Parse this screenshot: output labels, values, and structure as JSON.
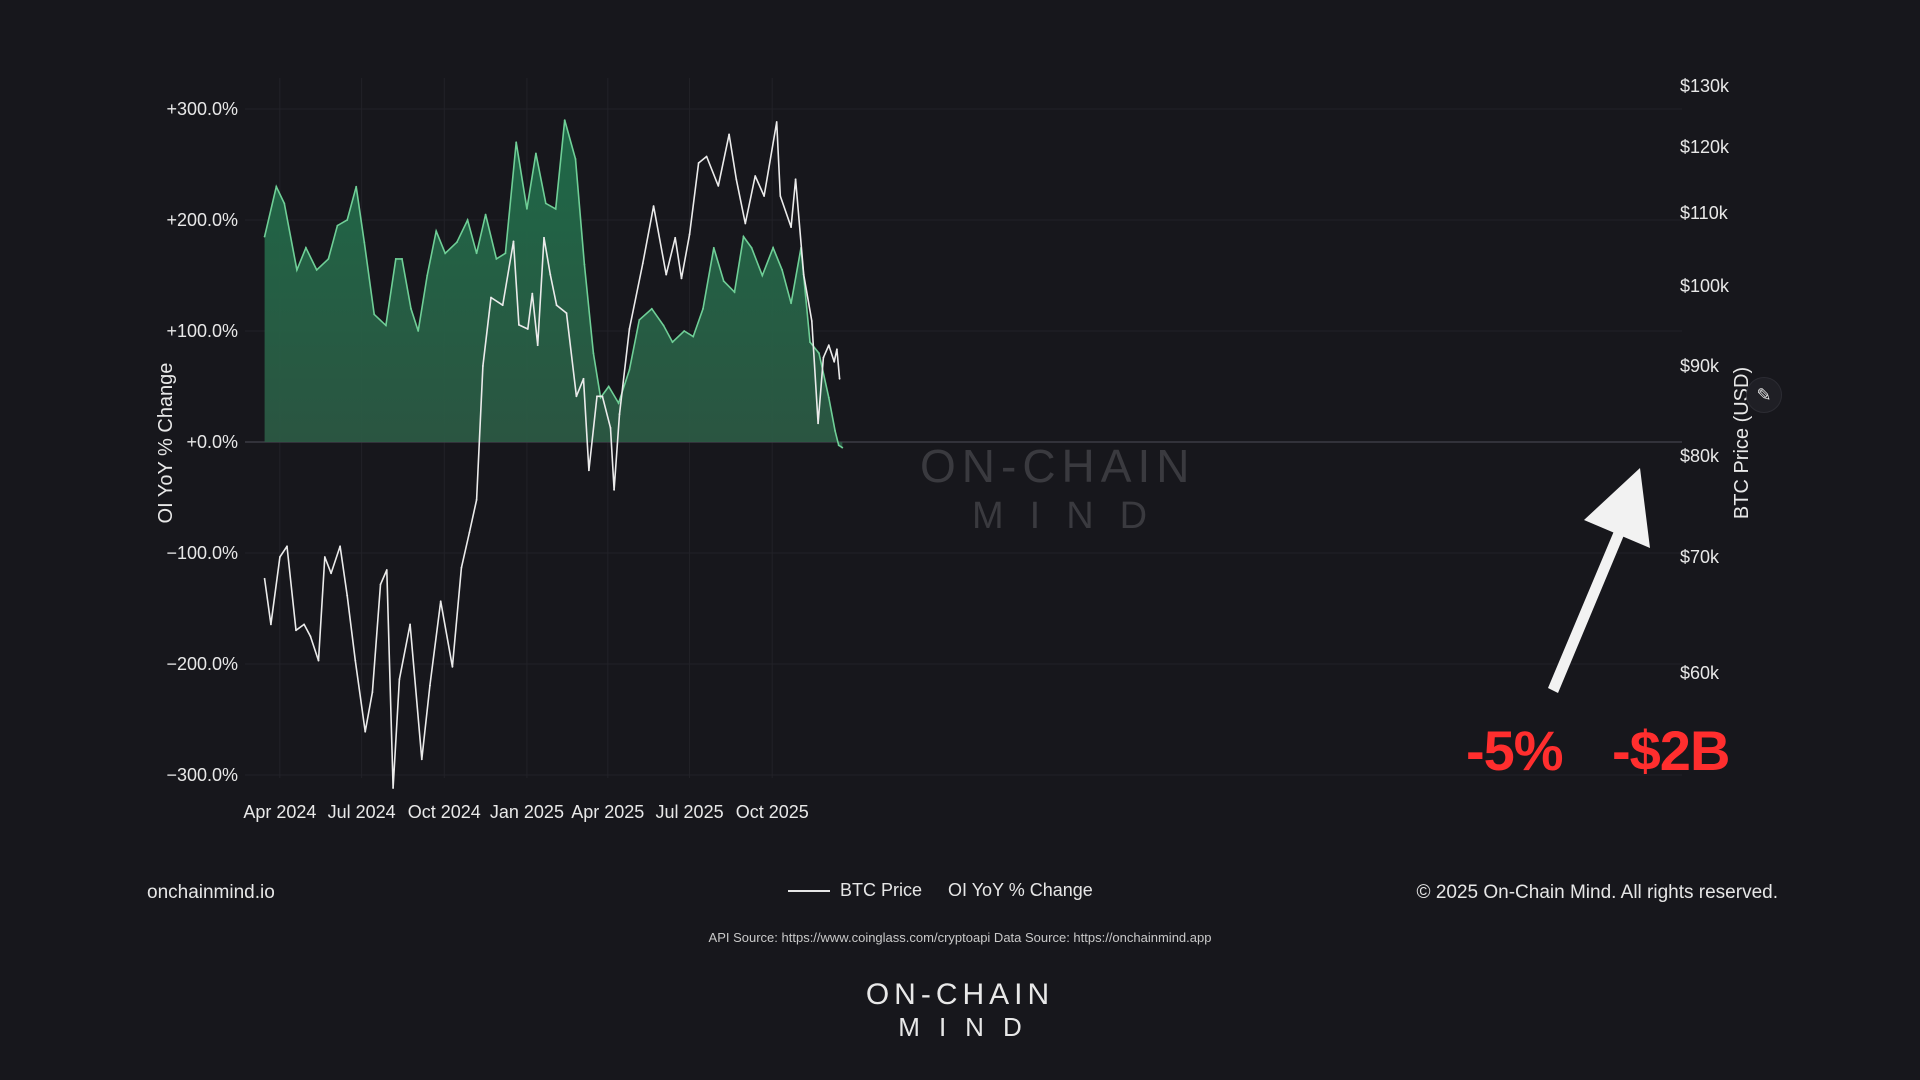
{
  "chart_data": {
    "type": "line",
    "x_ticks": [
      "Apr 2024",
      "Jul 2024",
      "Oct 2024",
      "Jan 2025",
      "Apr 2025",
      "Jul 2025",
      "Oct 2025"
    ],
    "y_left": {
      "label": "OI YoY % Change",
      "ticks": [
        "+300.0%",
        "+200.0%",
        "+100.0%",
        "+0.0%",
        "−100.0%",
        "−200.0%",
        "−300.0%"
      ],
      "range": [
        -300,
        300
      ]
    },
    "y_right": {
      "label": "BTC Price (USD)",
      "ticks": [
        "$130k",
        "$120k",
        "$110k",
        "$100k",
        "$90k",
        "$80k",
        "$70k",
        "$60k"
      ],
      "scale": "log",
      "range": [
        57000,
        132000
      ]
    },
    "series": [
      {
        "name": "BTC Price",
        "axis": "right",
        "color": "#ebebeb",
        "points": [
          [
            "2024-03-15",
            68000
          ],
          [
            "2024-03-22",
            64000
          ],
          [
            "2024-04-01",
            70000
          ],
          [
            "2024-04-09",
            71000
          ],
          [
            "2024-04-19",
            63500
          ],
          [
            "2024-04-28",
            64000
          ],
          [
            "2024-05-05",
            63000
          ],
          [
            "2024-05-14",
            61000
          ],
          [
            "2024-05-21",
            70000
          ],
          [
            "2024-05-28",
            68500
          ],
          [
            "2024-06-07",
            71000
          ],
          [
            "2024-06-15",
            66500
          ],
          [
            "2024-06-24",
            61000
          ],
          [
            "2024-07-05",
            55500
          ],
          [
            "2024-07-13",
            58500
          ],
          [
            "2024-07-22",
            67500
          ],
          [
            "2024-07-29",
            68800
          ],
          [
            "2024-08-05",
            51500
          ],
          [
            "2024-08-12",
            59500
          ],
          [
            "2024-08-24",
            64000
          ],
          [
            "2024-09-06",
            53500
          ],
          [
            "2024-09-15",
            59000
          ],
          [
            "2024-09-27",
            66000
          ],
          [
            "2024-10-10",
            60500
          ],
          [
            "2024-10-20",
            69000
          ],
          [
            "2024-10-29",
            72300
          ],
          [
            "2024-11-06",
            75500
          ],
          [
            "2024-11-13",
            90000
          ],
          [
            "2024-11-22",
            98500
          ],
          [
            "2024-12-05",
            97500
          ],
          [
            "2024-12-17",
            106000
          ],
          [
            "2024-12-23",
            95000
          ],
          [
            "2025-01-02",
            94500
          ],
          [
            "2025-01-07",
            99000
          ],
          [
            "2025-01-13",
            92500
          ],
          [
            "2025-01-20",
            106500
          ],
          [
            "2025-01-27",
            101500
          ],
          [
            "2025-02-03",
            97500
          ],
          [
            "2025-02-14",
            96500
          ],
          [
            "2025-02-25",
            86500
          ],
          [
            "2025-03-05",
            88500
          ],
          [
            "2025-03-11",
            78500
          ],
          [
            "2025-03-20",
            86500
          ],
          [
            "2025-03-26",
            86500
          ],
          [
            "2025-04-04",
            83000
          ],
          [
            "2025-04-08",
            76500
          ],
          [
            "2025-04-14",
            84500
          ],
          [
            "2025-04-25",
            94500
          ],
          [
            "2025-05-10",
            103000
          ],
          [
            "2025-05-22",
            111000
          ],
          [
            "2025-06-05",
            101500
          ],
          [
            "2025-06-15",
            106500
          ],
          [
            "2025-06-22",
            101000
          ],
          [
            "2025-07-01",
            107000
          ],
          [
            "2025-07-11",
            117500
          ],
          [
            "2025-07-20",
            118500
          ],
          [
            "2025-08-02",
            114000
          ],
          [
            "2025-08-14",
            122000
          ],
          [
            "2025-08-22",
            115000
          ],
          [
            "2025-09-01",
            108500
          ],
          [
            "2025-09-12",
            115500
          ],
          [
            "2025-09-22",
            112500
          ],
          [
            "2025-10-06",
            124000
          ],
          [
            "2025-10-10",
            112500
          ],
          [
            "2025-10-22",
            108000
          ],
          [
            "2025-10-27",
            115000
          ],
          [
            "2025-11-05",
            101500
          ],
          [
            "2025-11-14",
            95500
          ],
          [
            "2025-11-21",
            83500
          ],
          [
            "2025-11-27",
            91000
          ],
          [
            "2025-12-03",
            92500
          ],
          [
            "2025-12-09",
            90500
          ],
          [
            "2025-12-12",
            92000
          ],
          [
            "2025-12-15",
            88500
          ]
        ]
      },
      {
        "name": "OI YoY % Change",
        "axis": "left",
        "color": "#6fcf97",
        "points": [
          [
            "2024-03-15",
            185
          ],
          [
            "2024-03-28",
            230
          ],
          [
            "2024-04-06",
            215
          ],
          [
            "2024-04-20",
            155
          ],
          [
            "2024-04-30",
            175
          ],
          [
            "2024-05-12",
            155
          ],
          [
            "2024-05-25",
            165
          ],
          [
            "2024-06-04",
            195
          ],
          [
            "2024-06-15",
            200
          ],
          [
            "2024-06-25",
            230
          ],
          [
            "2024-07-04",
            180
          ],
          [
            "2024-07-15",
            115
          ],
          [
            "2024-07-28",
            105
          ],
          [
            "2024-08-08",
            165
          ],
          [
            "2024-08-15",
            165
          ],
          [
            "2024-08-25",
            120
          ],
          [
            "2024-09-02",
            100
          ],
          [
            "2024-09-12",
            150
          ],
          [
            "2024-09-22",
            190
          ],
          [
            "2024-10-02",
            170
          ],
          [
            "2024-10-15",
            180
          ],
          [
            "2024-10-27",
            200
          ],
          [
            "2024-11-06",
            170
          ],
          [
            "2024-11-16",
            205
          ],
          [
            "2024-11-28",
            165
          ],
          [
            "2024-12-08",
            170
          ],
          [
            "2024-12-20",
            270
          ],
          [
            "2025-01-01",
            210
          ],
          [
            "2025-01-11",
            260
          ],
          [
            "2025-01-22",
            215
          ],
          [
            "2025-02-02",
            210
          ],
          [
            "2025-02-12",
            290
          ],
          [
            "2025-02-24",
            255
          ],
          [
            "2025-03-06",
            160
          ],
          [
            "2025-03-16",
            80
          ],
          [
            "2025-03-24",
            40
          ],
          [
            "2025-04-02",
            50
          ],
          [
            "2025-04-13",
            35
          ],
          [
            "2025-04-25",
            65
          ],
          [
            "2025-05-06",
            110
          ],
          [
            "2025-05-20",
            120
          ],
          [
            "2025-06-02",
            105
          ],
          [
            "2025-06-12",
            90
          ],
          [
            "2025-06-25",
            100
          ],
          [
            "2025-07-05",
            95
          ],
          [
            "2025-07-16",
            120
          ],
          [
            "2025-07-28",
            175
          ],
          [
            "2025-08-08",
            145
          ],
          [
            "2025-08-20",
            135
          ],
          [
            "2025-08-30",
            185
          ],
          [
            "2025-09-08",
            175
          ],
          [
            "2025-09-20",
            150
          ],
          [
            "2025-10-02",
            175
          ],
          [
            "2025-10-12",
            155
          ],
          [
            "2025-10-22",
            125
          ],
          [
            "2025-11-02",
            175
          ],
          [
            "2025-11-12",
            90
          ],
          [
            "2025-11-22",
            80
          ],
          [
            "2025-12-03",
            40
          ],
          [
            "2025-12-10",
            10
          ],
          [
            "2025-12-14",
            -3
          ],
          [
            "2025-12-18",
            -5
          ]
        ]
      }
    ],
    "annotations": [
      "-5%",
      "-$2B"
    ],
    "watermark": [
      "ON-CHAIN",
      "MIND"
    ],
    "grid": true,
    "legend": "bottom-center"
  },
  "footer": {
    "site": "onchainmind.io",
    "copyright": "© 2025 On-Chain Mind. All rights reserved.",
    "api_source": "API Source: https://www.coinglass.com/cryptoapi Data Source: https://onchainmind.app",
    "brand_top": "ON-CHAIN",
    "brand_bottom": "MIND"
  },
  "legend": {
    "btc_label": "BTC Price",
    "oi_label": "OI YoY % Change"
  },
  "icons": {
    "edit": "pencil-icon"
  }
}
